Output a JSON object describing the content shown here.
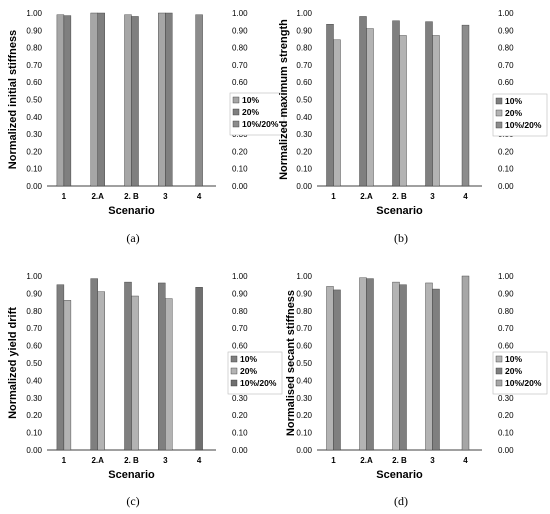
{
  "chart_data": [
    {
      "type": "bar",
      "panel": "(a)",
      "xlabel": "Scenario",
      "ylabel": "Normalized initial stiffness",
      "categories": [
        "1",
        "2.A",
        "2. B",
        "3",
        "4"
      ],
      "ylim": [
        0,
        1
      ],
      "yticks": [
        "0.00",
        "0.10",
        "0.20",
        "0.30",
        "0.40",
        "0.50",
        "0.60",
        "0.70",
        "0.80",
        "0.90",
        "1.00"
      ],
      "grid": false,
      "legend_position": "right",
      "series": [
        {
          "name": "10%",
          "color": "#a6a6a6",
          "values": [
            0.99,
            1.0,
            0.99,
            1.0,
            null
          ]
        },
        {
          "name": "20%",
          "color": "#7f7f7f",
          "values": [
            0.985,
            1.0,
            0.98,
            1.0,
            null
          ]
        },
        {
          "name": "10%/20%",
          "color": "#8c8c8c",
          "values": [
            null,
            null,
            null,
            null,
            0.99
          ]
        }
      ]
    },
    {
      "type": "bar",
      "panel": "(b)",
      "xlabel": "Scenario",
      "ylabel": "Normalized maximum strength",
      "categories": [
        "1",
        "2.A",
        "2. B",
        "3",
        "4"
      ],
      "ylim": [
        0,
        1
      ],
      "yticks": [
        "0.00",
        "0.10",
        "0.20",
        "0.30",
        "0.40",
        "0.50",
        "0.60",
        "0.70",
        "0.80",
        "0.90",
        "1.00"
      ],
      "grid": false,
      "legend_position": "right",
      "series": [
        {
          "name": "10%",
          "color": "#7f7f7f",
          "values": [
            0.935,
            0.98,
            0.955,
            0.95,
            null
          ]
        },
        {
          "name": "20%",
          "color": "#b3b3b3",
          "values": [
            0.845,
            0.91,
            0.87,
            0.87,
            null
          ]
        },
        {
          "name": "10%/20%",
          "color": "#8c8c8c",
          "values": [
            null,
            null,
            null,
            null,
            0.93
          ]
        }
      ]
    },
    {
      "type": "bar",
      "panel": "(c)",
      "xlabel": "Scenario",
      "ylabel": "Normalized yield drift",
      "categories": [
        "1",
        "2.A",
        "2. B",
        "3",
        "4"
      ],
      "ylim": [
        0,
        1
      ],
      "yticks": [
        "0.00",
        "0.10",
        "0.20",
        "0.30",
        "0.40",
        "0.50",
        "0.60",
        "0.70",
        "0.80",
        "0.90",
        "1.00"
      ],
      "grid": false,
      "legend_position": "right",
      "series": [
        {
          "name": "10%",
          "color": "#7f7f7f",
          "values": [
            0.95,
            0.985,
            0.965,
            0.96,
            null
          ]
        },
        {
          "name": "20%",
          "color": "#b3b3b3",
          "values": [
            0.86,
            0.91,
            0.885,
            0.87,
            null
          ]
        },
        {
          "name": "10%/20%",
          "color": "#6f6f6f",
          "values": [
            null,
            null,
            null,
            null,
            0.935
          ]
        }
      ]
    },
    {
      "type": "bar",
      "panel": "(d)",
      "xlabel": "Scenario",
      "ylabel": "Normalised secant stiffness",
      "categories": [
        "1",
        "2.A",
        "2. B",
        "3",
        "4"
      ],
      "ylim": [
        0,
        1
      ],
      "yticks": [
        "0.00",
        "0.10",
        "0.20",
        "0.30",
        "0.40",
        "0.50",
        "0.60",
        "0.70",
        "0.80",
        "0.90",
        "1.00"
      ],
      "grid": false,
      "legend_position": "right",
      "series": [
        {
          "name": "10%",
          "color": "#b3b3b3",
          "values": [
            0.94,
            0.99,
            0.965,
            0.96,
            null
          ]
        },
        {
          "name": "20%",
          "color": "#7f7f7f",
          "values": [
            0.92,
            0.985,
            0.95,
            0.925,
            null
          ]
        },
        {
          "name": "10%/20%",
          "color": "#a6a6a6",
          "values": [
            null,
            null,
            null,
            null,
            1.0
          ]
        }
      ]
    }
  ]
}
